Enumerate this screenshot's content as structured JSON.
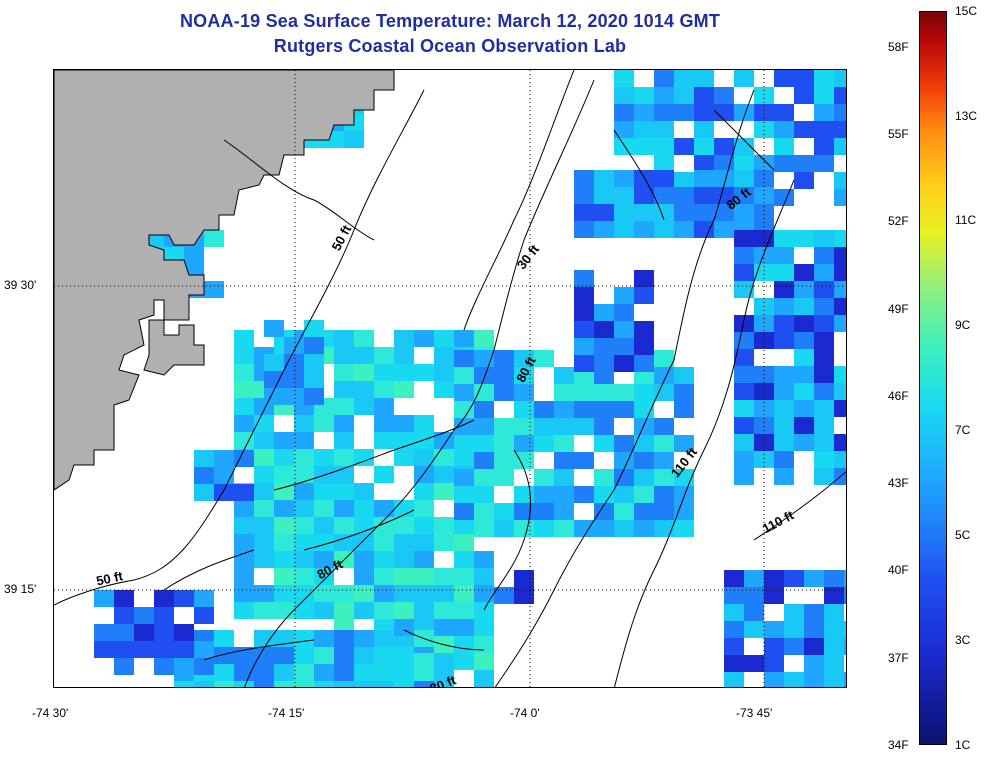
{
  "title": {
    "line1": "NOAA-19 Sea Surface Temperature:  March 12, 2020 1014 GMT",
    "line2": "Rutgers Coastal Ocean Observation Lab"
  },
  "map": {
    "lon_ticks": [
      "-74 30'",
      "-74 15'",
      "-74 0'",
      "-73 45'"
    ],
    "lat_ticks": [
      "39 30'",
      "39 15'"
    ],
    "land_color": "#b0b0b0",
    "contour_labels": [
      "50 ft",
      "30 ft",
      "80 ft",
      "80 ft",
      "110 ft",
      "110 ft",
      "80 ft",
      "50 ft",
      "80 ft"
    ]
  },
  "colorbar": {
    "fahrenheit": [
      "58F",
      "55F",
      "52F",
      "49F",
      "46F",
      "43F",
      "40F",
      "37F",
      "34F"
    ],
    "celsius": [
      "15C",
      "13C",
      "11C",
      "9C",
      "7C",
      "5C",
      "3C",
      "1C"
    ]
  }
}
